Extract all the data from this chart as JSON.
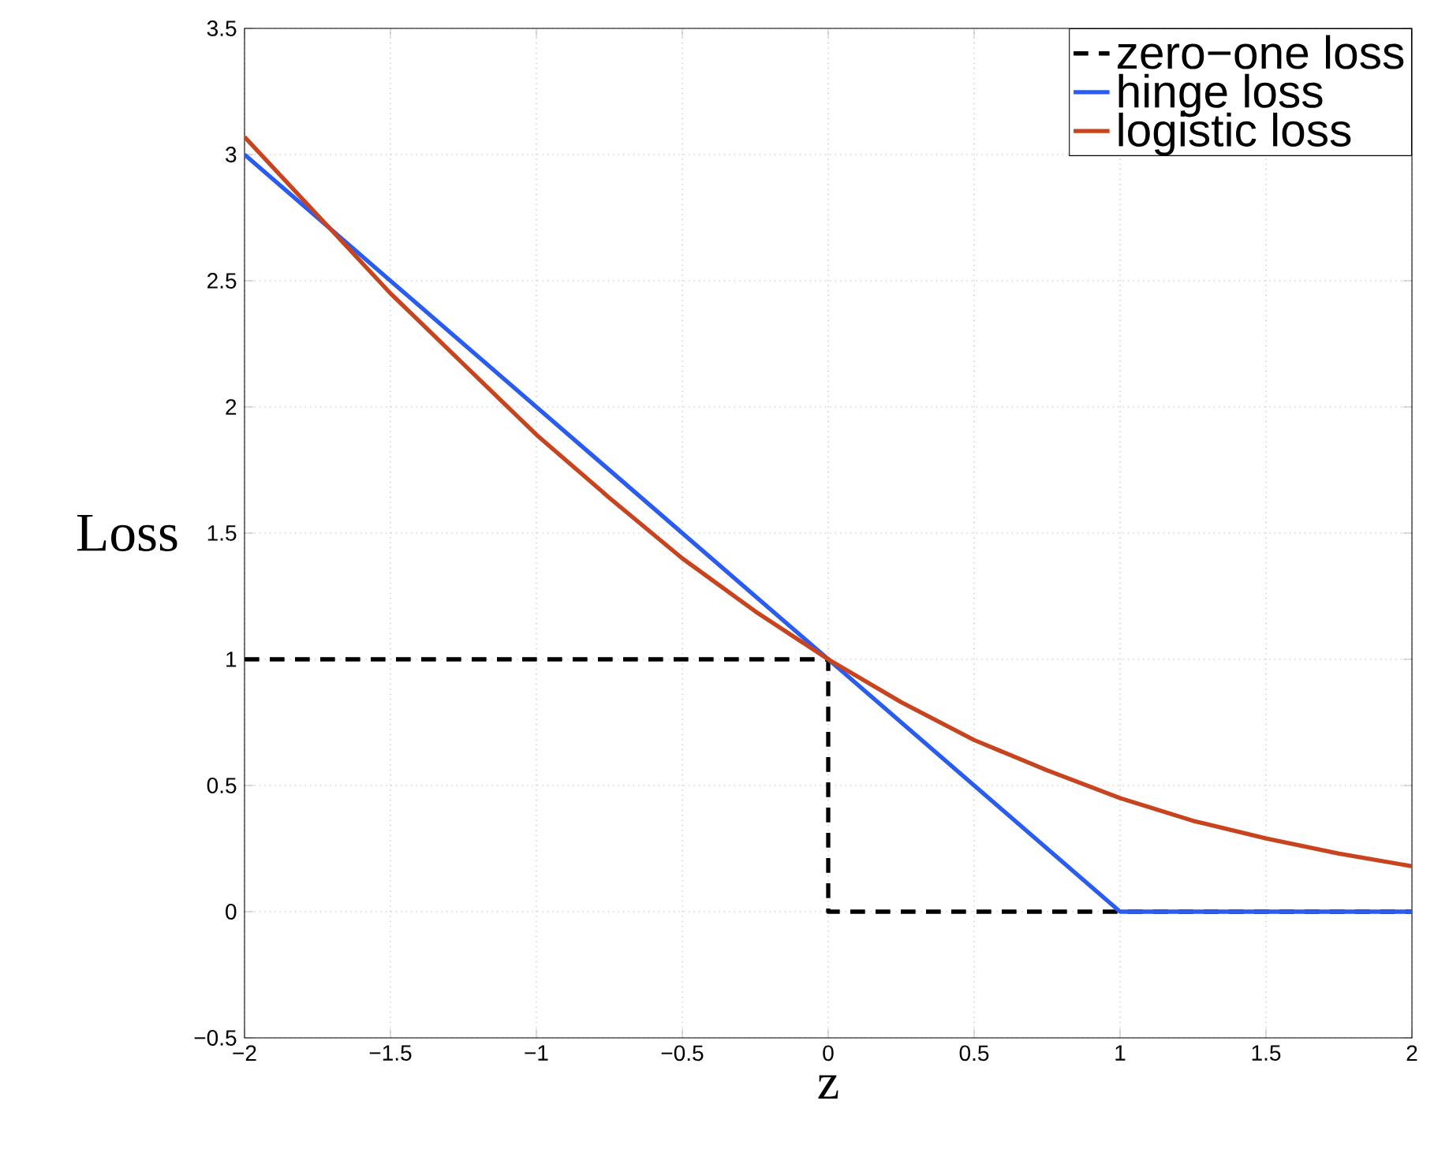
{
  "chart_data": {
    "type": "line",
    "xlabel": "z",
    "ylabel": "Loss",
    "xlim": [
      -2,
      2
    ],
    "ylim": [
      -0.5,
      3.5
    ],
    "xticks": [
      {
        "value": -2,
        "label": "−2"
      },
      {
        "value": -1.5,
        "label": "−1.5"
      },
      {
        "value": -1,
        "label": "−1"
      },
      {
        "value": -0.5,
        "label": "−0.5"
      },
      0,
      0.5,
      1,
      1.5,
      2
    ],
    "yticks": [
      {
        "value": -0.5,
        "label": "−0.5"
      },
      0,
      0.5,
      1,
      1.5,
      2,
      2.5,
      3,
      3.5
    ],
    "grid": true,
    "legend": "top right",
    "marker": "none",
    "series": [
      {
        "name": "zero−one loss",
        "color": "#000000",
        "line_style": "dashed",
        "x": [
          -2,
          0,
          0,
          2
        ],
        "values": [
          1,
          1,
          0,
          0
        ]
      },
      {
        "name": "hinge loss",
        "color": "#2b5cf0",
        "line_style": "solid",
        "x": [
          -2,
          1,
          2
        ],
        "values": [
          3,
          0,
          0
        ]
      },
      {
        "name": "logistic loss",
        "color": "#c8441f",
        "line_style": "solid",
        "x": [
          -2,
          -1.75,
          -1.5,
          -1.25,
          -1,
          -0.75,
          -0.5,
          -0.25,
          0,
          0.25,
          0.5,
          0.75,
          1,
          1.25,
          1.5,
          1.75,
          2
        ],
        "values": [
          3.07,
          2.76,
          2.45,
          2.17,
          1.89,
          1.64,
          1.4,
          1.19,
          1,
          0.83,
          0.68,
          0.56,
          0.45,
          0.36,
          0.29,
          0.23,
          0.18
        ]
      }
    ]
  }
}
